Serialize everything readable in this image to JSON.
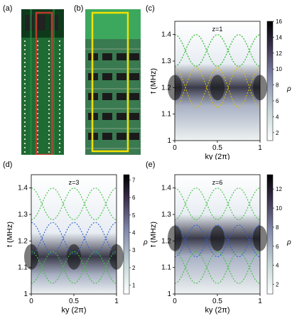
{
  "figure": {
    "panels": {
      "a": {
        "label": "(a)"
      },
      "b": {
        "label": "(b)"
      },
      "c": {
        "label": "(c)",
        "z_label": "z=1"
      },
      "d": {
        "label": "(d)",
        "z_label": "z=3"
      },
      "e": {
        "label": "(e)",
        "z_label": "z=6"
      }
    }
  },
  "colors": {
    "pcb_green": "#1f7a3a",
    "highlight_red": "#c0392b",
    "highlight_yellow": "#f1e100",
    "dashed_green": "#3fbf3f",
    "dashed_blue": "#2f5fd0",
    "dashed_yellow": "#d8c000"
  },
  "chart_data": [
    {
      "type": "heatmap",
      "panel": "c",
      "annotation": "z=1",
      "xlabel": "ky (2π)",
      "ylabel": "f (MHz)",
      "xlim": [
        0,
        1
      ],
      "ylim": [
        1.0,
        1.45
      ],
      "xticks": [
        "0",
        "0.5",
        "1"
      ],
      "yticks": [
        "1",
        "1.1",
        "1.2",
        "1.3",
        "1.4"
      ],
      "colorbar": {
        "label": "ρ",
        "ticks": [
          "2",
          "4",
          "6",
          "8",
          "10",
          "12",
          "14",
          "16"
        ],
        "range": [
          1,
          16
        ]
      },
      "curves": [
        {
          "color": "green",
          "f_at_ky0": 1.4,
          "f_at_ky05": 1.28,
          "amplitude": 0.06,
          "mid": 1.34
        },
        {
          "color": "green",
          "f_at_ky0": 1.28,
          "f_at_ky05": 1.4,
          "amplitude": 0.06,
          "mid": 1.34
        },
        {
          "color": "yellow",
          "mid": 1.2,
          "amplitude": 0.075
        }
      ],
      "bright_band_center_mhz": 1.2
    },
    {
      "type": "heatmap",
      "panel": "d",
      "annotation": "z=3",
      "xlabel": "ky (2π)",
      "ylabel": "f (MHz)",
      "xlim": [
        0,
        1
      ],
      "ylim": [
        1.0,
        1.45
      ],
      "xticks": [
        "0",
        "0.5",
        "1"
      ],
      "yticks": [
        "1",
        "1.1",
        "1.2",
        "1.3",
        "1.4"
      ],
      "colorbar": {
        "label": "ρ",
        "ticks": [
          "1",
          "2",
          "3",
          "4",
          "5",
          "6",
          "7"
        ],
        "range": [
          0.5,
          7.3
        ]
      },
      "curves": [
        {
          "color": "green",
          "mid": 1.34,
          "amplitude": 0.06
        },
        {
          "color": "blue",
          "mid": 1.21,
          "amplitude": 0.06
        },
        {
          "color": "green",
          "mid": 1.1,
          "amplitude": 0.06
        }
      ],
      "bright_band_center_mhz": 1.14
    },
    {
      "type": "heatmap",
      "panel": "e",
      "annotation": "z=6",
      "xlabel": "ky (2π)",
      "ylabel": "f (MHz)",
      "xlim": [
        0,
        1
      ],
      "ylim": [
        1.0,
        1.45
      ],
      "xticks": [
        "0",
        "0.5",
        "1"
      ],
      "yticks": [
        "1",
        "1.1",
        "1.2",
        "1.3",
        "1.4"
      ],
      "colorbar": {
        "label": "ρ",
        "ticks": [
          "2",
          "4",
          "6",
          "8",
          "10",
          "12"
        ],
        "range": [
          1,
          13.5
        ]
      },
      "curves": [
        {
          "color": "green",
          "mid": 1.34,
          "amplitude": 0.06
        },
        {
          "color": "blue",
          "mid": 1.2,
          "amplitude": 0.06
        },
        {
          "color": "green",
          "mid": 1.1,
          "amplitude": 0.06
        }
      ],
      "bright_band_center_mhz": 1.21
    }
  ]
}
